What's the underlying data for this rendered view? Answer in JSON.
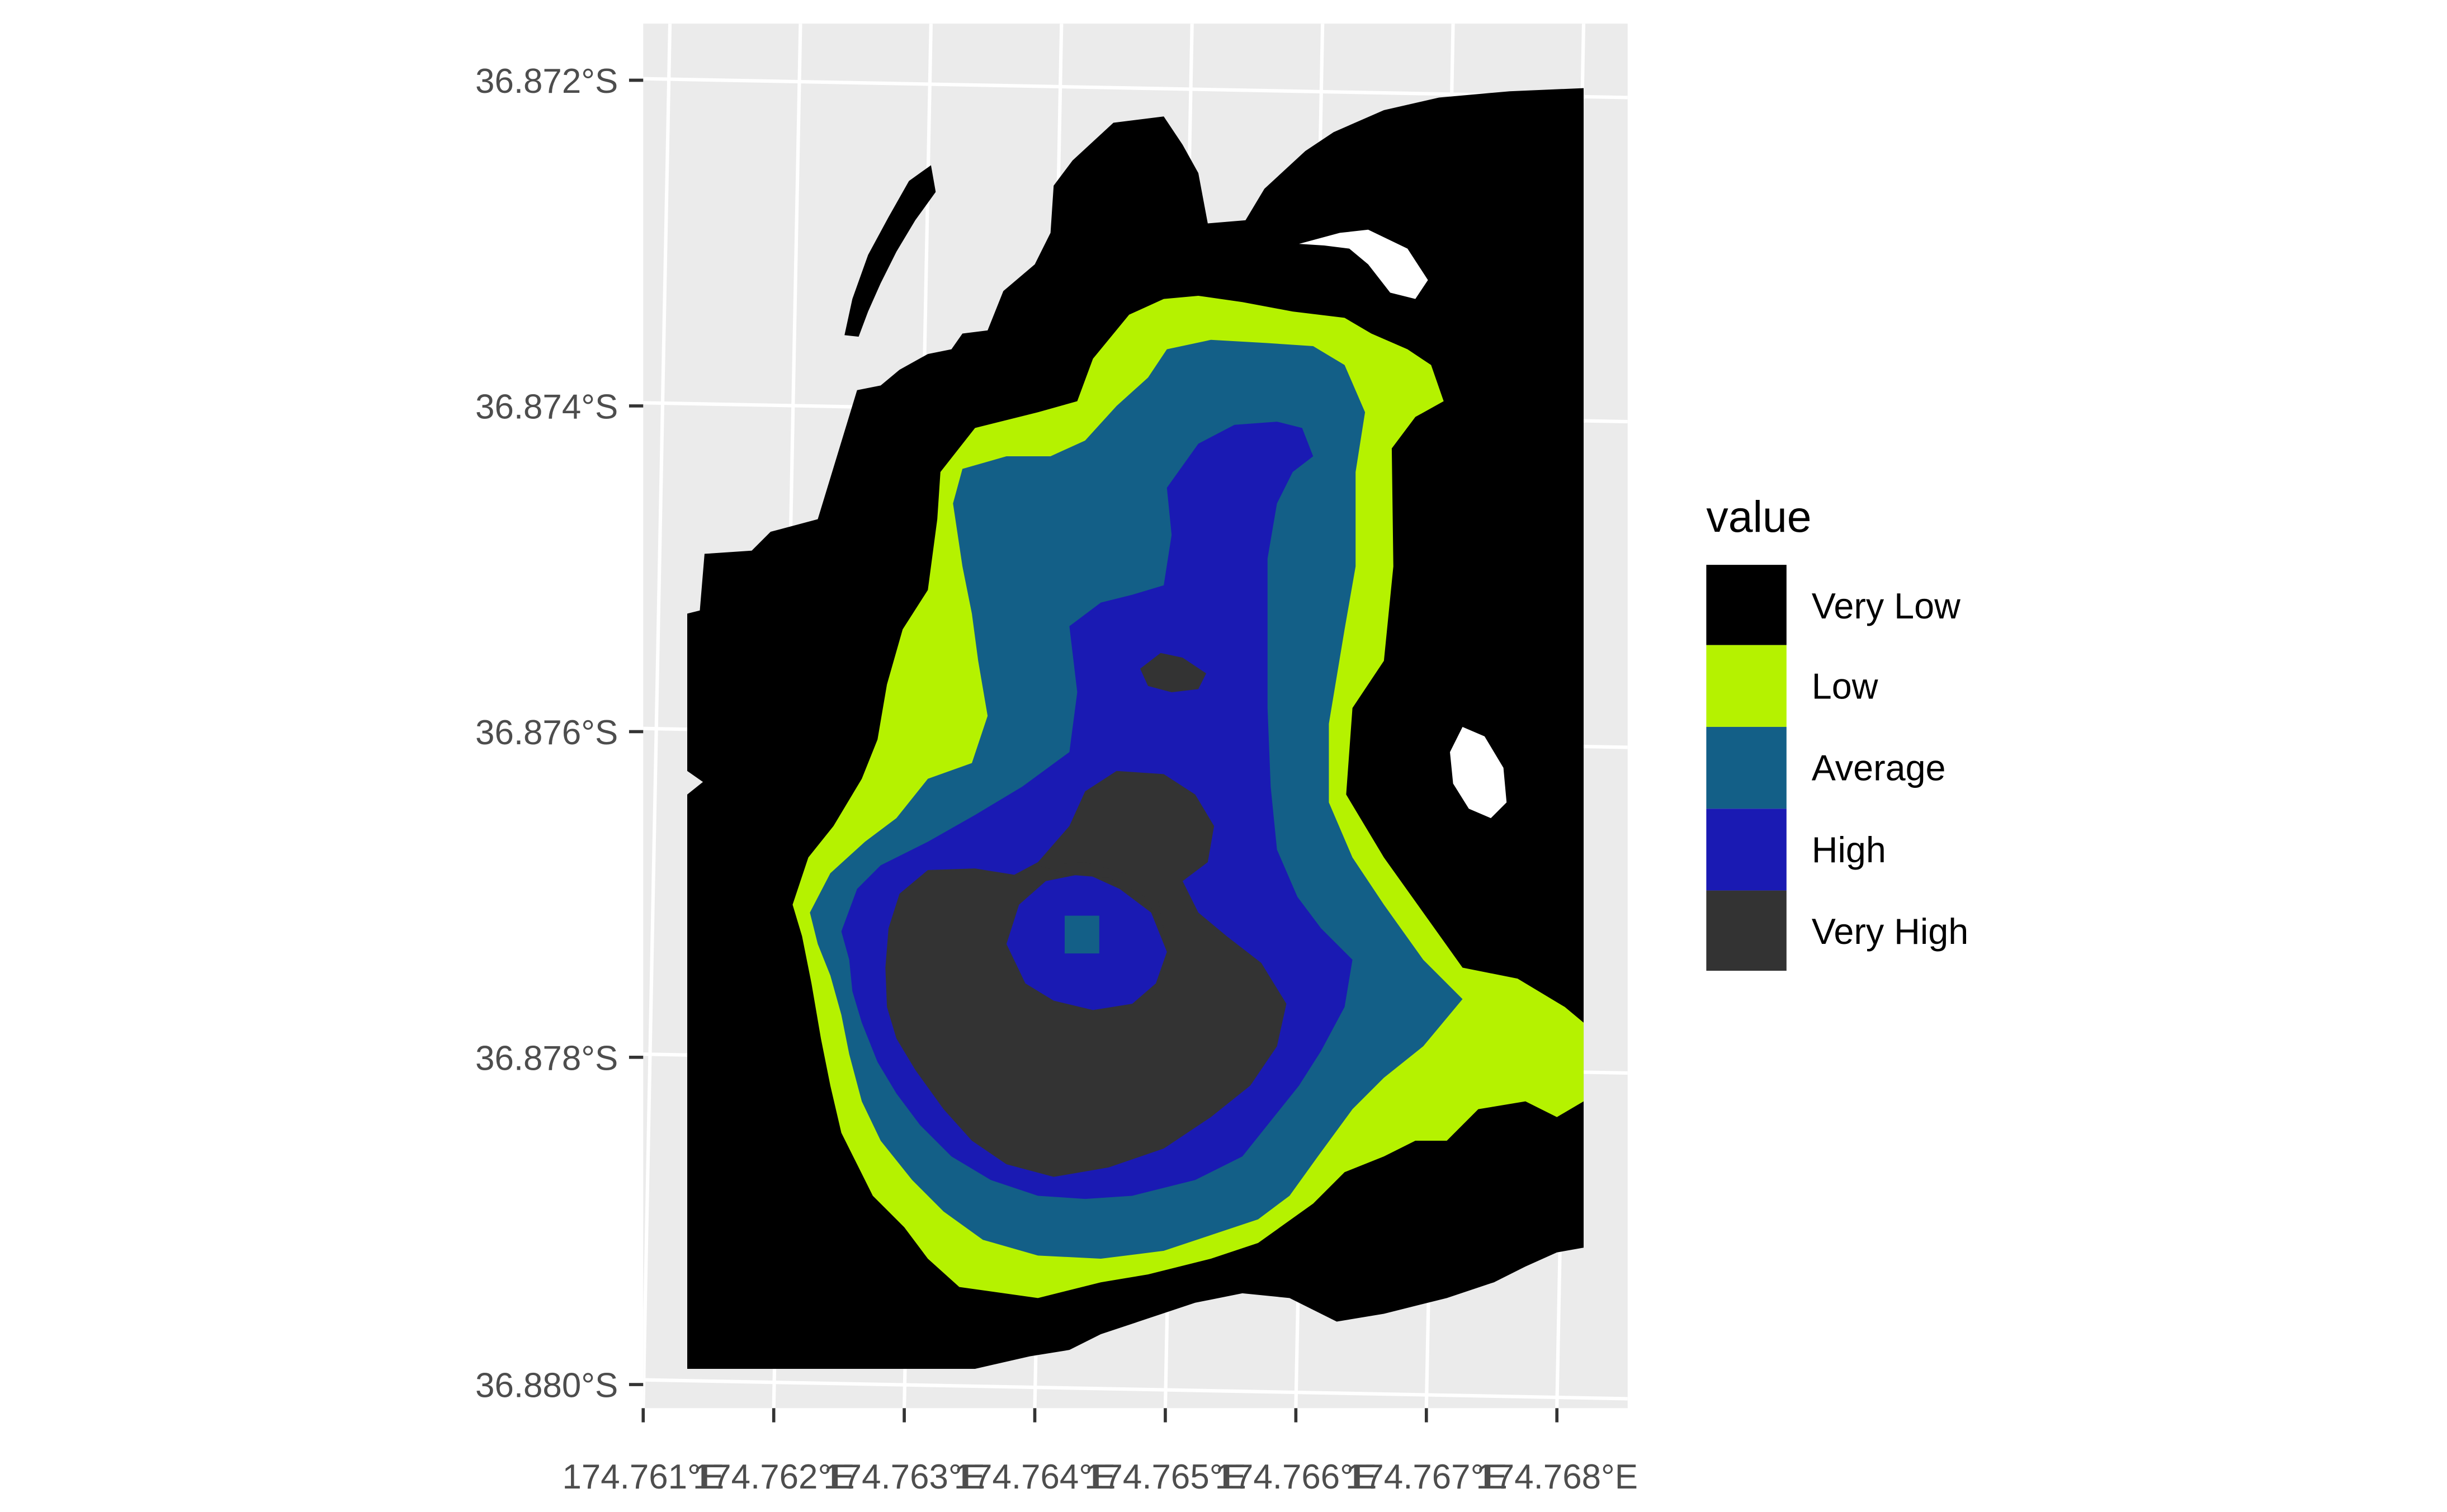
{
  "map": {
    "y_ticks": [
      "36.872°S",
      "36.874°S",
      "36.876°S",
      "36.878°S",
      "36.880°S"
    ],
    "x_ticks": [
      "174.761°E",
      "174.762°E",
      "174.763°E",
      "174.764°E",
      "174.765°E",
      "174.766°E",
      "174.767°E",
      "174.768°E"
    ],
    "panel_background": "#ebebeb",
    "grid_color": "#ffffff"
  },
  "legend": {
    "title": "value",
    "items": [
      {
        "label": "Very Low",
        "color": "#000000"
      },
      {
        "label": "Low",
        "color": "#b5f200"
      },
      {
        "label": "Average",
        "color": "#135f87"
      },
      {
        "label": "High",
        "color": "#1a1ab3"
      },
      {
        "label": "Very High",
        "color": "#333333"
      }
    ]
  }
}
